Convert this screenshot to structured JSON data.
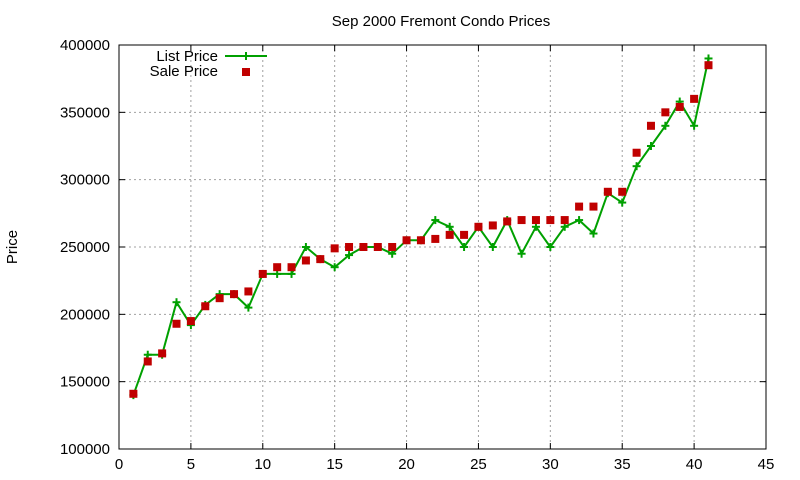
{
  "chart_data": {
    "type": "line",
    "title": "Sep 2000 Fremont Condo Prices",
    "xlabel": "",
    "ylabel": "Price",
    "xlim": [
      0,
      45
    ],
    "ylim": [
      100000,
      400000
    ],
    "xticks": [
      0,
      5,
      10,
      15,
      20,
      25,
      30,
      35,
      40,
      45
    ],
    "yticks": [
      100000,
      150000,
      200000,
      250000,
      300000,
      350000,
      400000
    ],
    "grid": true,
    "legend_position": "top-left",
    "x": [
      1,
      2,
      3,
      4,
      5,
      6,
      7,
      8,
      9,
      10,
      11,
      12,
      13,
      14,
      15,
      16,
      17,
      18,
      19,
      20,
      21,
      22,
      23,
      24,
      25,
      26,
      27,
      28,
      29,
      30,
      31,
      32,
      33,
      34,
      35,
      36,
      37,
      38,
      39,
      40,
      41
    ],
    "series": [
      {
        "name": "List Price",
        "style": "line-plus",
        "color": "#00a000",
        "values": [
          140000,
          170000,
          170000,
          209000,
          192000,
          207000,
          215000,
          215000,
          205000,
          230000,
          230000,
          230000,
          250000,
          241000,
          235000,
          244000,
          250000,
          250000,
          245000,
          255000,
          255000,
          270000,
          265000,
          250000,
          265000,
          250000,
          270000,
          245000,
          265000,
          250000,
          265000,
          270000,
          260000,
          290000,
          283000,
          310000,
          325000,
          340000,
          358000,
          340000,
          390000
        ]
      },
      {
        "name": "Sale Price",
        "style": "square",
        "color": "#c00000",
        "values": [
          141000,
          165000,
          171000,
          193000,
          195000,
          206000,
          212000,
          215000,
          217000,
          230000,
          235000,
          235000,
          240000,
          241000,
          249000,
          250000,
          250000,
          250000,
          250000,
          255000,
          255000,
          256000,
          259000,
          259000,
          265000,
          266000,
          269000,
          270000,
          270000,
          270000,
          270000,
          280000,
          280000,
          291000,
          291000,
          320000,
          340000,
          350000,
          354000,
          360000,
          385000
        ]
      }
    ]
  }
}
